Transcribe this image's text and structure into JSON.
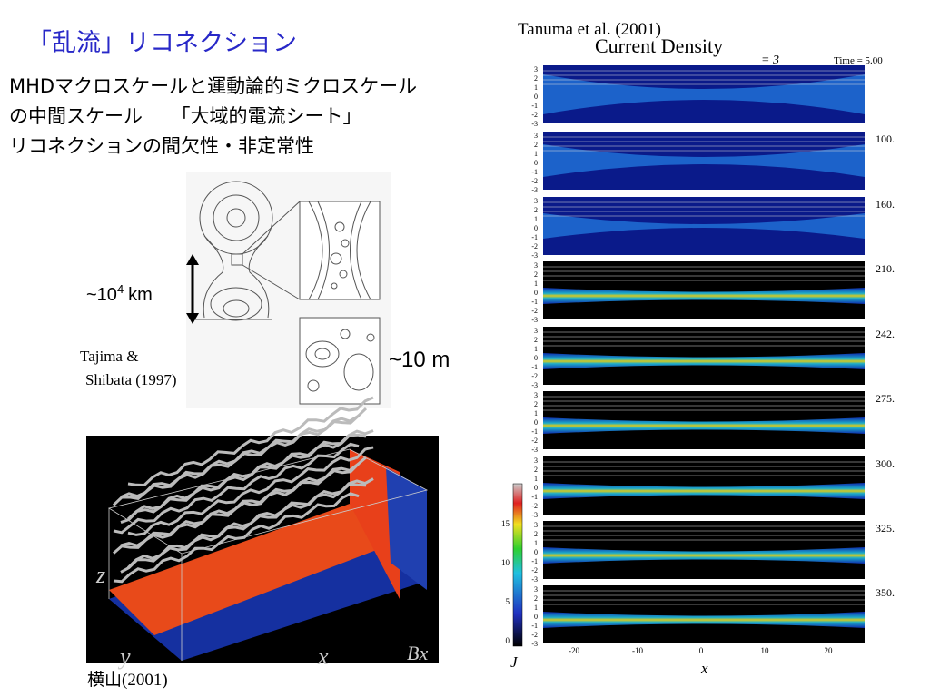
{
  "header": {
    "title": "「乱流」リコネクション",
    "lines": [
      "MHDマクロスケールと運動論的ミクロスケール",
      "の中間スケール　　「大域的電流シート」",
      "リコネクションの間欠性・非定常性"
    ]
  },
  "diagram": {
    "scale_large": {
      "prefix": "~10",
      "exponent": "4",
      "unit": "km"
    },
    "scale_small": "~10 m",
    "citation": [
      "Tajima &",
      "Shibata (1997)"
    ]
  },
  "simulation_3d": {
    "axes": {
      "z": "z",
      "y": "y",
      "x": "x",
      "bx": "Bx"
    },
    "citation": "横山(2001)"
  },
  "current_density": {
    "citation": "Tanuma et al. (2001)",
    "title": "Current Density",
    "beta": "= 3",
    "panel_times": [
      "Time = 5.00",
      "100.",
      "160.",
      "210.",
      "242.",
      "275.",
      "300.",
      "325.",
      "350."
    ],
    "panel_yticks": [
      "3",
      "2",
      "1",
      "0",
      "-1",
      "-2",
      "-3"
    ],
    "colorbar_ticks": [
      "15",
      "10",
      "5",
      "0"
    ],
    "x_ticks": [
      "-20",
      "-10",
      "0",
      "10",
      "20"
    ],
    "x_label": "x",
    "colorbar_label": "J"
  }
}
